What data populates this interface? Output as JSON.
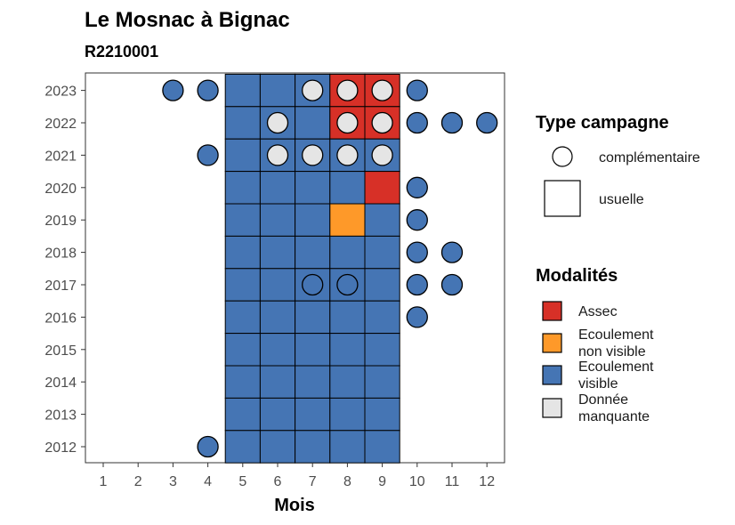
{
  "chart_data": {
    "type": "heatmap",
    "title": "Le Mosnac à Bignac",
    "subtitle": "R2210001",
    "xlabel": "Mois",
    "ylabel": "",
    "x_ticks": [
      "1",
      "2",
      "3",
      "4",
      "5",
      "6",
      "7",
      "8",
      "9",
      "10",
      "11",
      "12"
    ],
    "y_ticks": [
      "2012",
      "2013",
      "2014",
      "2015",
      "2016",
      "2017",
      "2018",
      "2019",
      "2020",
      "2021",
      "2022",
      "2023"
    ],
    "colors": {
      "Assec": "#d73027",
      "Ecoulement non visible": "#fe9929",
      "Ecoulement visible": "#4575b4",
      "Donnée manquante": "#e5e5e5"
    },
    "legend_type": {
      "title": "Type campagne",
      "items": [
        {
          "label": "complémentaire",
          "shape": "circle"
        },
        {
          "label": "usuelle",
          "shape": "square"
        }
      ]
    },
    "legend_modalites": {
      "title": "Modalités",
      "items": [
        {
          "key": "Assec",
          "lines": [
            "Assec"
          ]
        },
        {
          "key": "Ecoulement non visible",
          "lines": [
            "Ecoulement",
            "non visible"
          ]
        },
        {
          "key": "Ecoulement visible",
          "lines": [
            "Ecoulement",
            "visible"
          ]
        },
        {
          "key": "Donnée manquante",
          "lines": [
            "Donnée",
            "manquante"
          ]
        }
      ]
    },
    "usuelle": [
      {
        "year": 2023,
        "months": [
          5,
          6,
          7,
          8,
          9
        ],
        "values": [
          "Ecoulement visible",
          "Ecoulement visible",
          "Ecoulement visible",
          "Assec",
          "Assec"
        ]
      },
      {
        "year": 2022,
        "months": [
          5,
          6,
          7,
          8,
          9
        ],
        "values": [
          "Ecoulement visible",
          "Ecoulement visible",
          "Ecoulement visible",
          "Assec",
          "Assec"
        ]
      },
      {
        "year": 2021,
        "months": [
          5,
          6,
          7,
          8,
          9
        ],
        "values": [
          "Ecoulement visible",
          "Ecoulement visible",
          "Ecoulement visible",
          "Ecoulement visible",
          "Ecoulement visible"
        ]
      },
      {
        "year": 2020,
        "months": [
          5,
          6,
          7,
          8,
          9
        ],
        "values": [
          "Ecoulement visible",
          "Ecoulement visible",
          "Ecoulement visible",
          "Ecoulement visible",
          "Assec"
        ]
      },
      {
        "year": 2019,
        "months": [
          5,
          6,
          7,
          8,
          9
        ],
        "values": [
          "Ecoulement visible",
          "Ecoulement visible",
          "Ecoulement visible",
          "Ecoulement non visible",
          "Ecoulement visible"
        ]
      },
      {
        "year": 2018,
        "months": [
          5,
          6,
          7,
          8,
          9
        ],
        "values": [
          "Ecoulement visible",
          "Ecoulement visible",
          "Ecoulement visible",
          "Ecoulement visible",
          "Ecoulement visible"
        ]
      },
      {
        "year": 2017,
        "months": [
          5,
          6,
          7,
          8,
          9
        ],
        "values": [
          "Ecoulement visible",
          "Ecoulement visible",
          "Ecoulement visible",
          "Ecoulement visible",
          "Ecoulement visible"
        ]
      },
      {
        "year": 2016,
        "months": [
          5,
          6,
          7,
          8,
          9
        ],
        "values": [
          "Ecoulement visible",
          "Ecoulement visible",
          "Ecoulement visible",
          "Ecoulement visible",
          "Ecoulement visible"
        ]
      },
      {
        "year": 2015,
        "months": [
          5,
          6,
          7,
          8,
          9
        ],
        "values": [
          "Ecoulement visible",
          "Ecoulement visible",
          "Ecoulement visible",
          "Ecoulement visible",
          "Ecoulement visible"
        ]
      },
      {
        "year": 2014,
        "months": [
          5,
          6,
          7,
          8,
          9
        ],
        "values": [
          "Ecoulement visible",
          "Ecoulement visible",
          "Ecoulement visible",
          "Ecoulement visible",
          "Ecoulement visible"
        ]
      },
      {
        "year": 2013,
        "months": [
          5,
          6,
          7,
          8,
          9
        ],
        "values": [
          "Ecoulement visible",
          "Ecoulement visible",
          "Ecoulement visible",
          "Ecoulement visible",
          "Ecoulement visible"
        ]
      },
      {
        "year": 2012,
        "months": [
          5,
          6,
          7,
          8,
          9
        ],
        "values": [
          "Ecoulement visible",
          "Ecoulement visible",
          "Ecoulement visible",
          "Ecoulement visible",
          "Ecoulement visible"
        ]
      }
    ],
    "complementaire": [
      {
        "year": 2023,
        "month": 3,
        "value": "Ecoulement visible"
      },
      {
        "year": 2023,
        "month": 4,
        "value": "Ecoulement visible"
      },
      {
        "year": 2023,
        "month": 7,
        "value": "Donnée manquante"
      },
      {
        "year": 2023,
        "month": 8,
        "value": "Donnée manquante"
      },
      {
        "year": 2023,
        "month": 9,
        "value": "Donnée manquante"
      },
      {
        "year": 2023,
        "month": 10,
        "value": "Ecoulement visible"
      },
      {
        "year": 2022,
        "month": 6,
        "value": "Donnée manquante"
      },
      {
        "year": 2022,
        "month": 8,
        "value": "Donnée manquante"
      },
      {
        "year": 2022,
        "month": 9,
        "value": "Donnée manquante"
      },
      {
        "year": 2022,
        "month": 10,
        "value": "Ecoulement visible"
      },
      {
        "year": 2022,
        "month": 11,
        "value": "Ecoulement visible"
      },
      {
        "year": 2022,
        "month": 12,
        "value": "Ecoulement visible"
      },
      {
        "year": 2021,
        "month": 4,
        "value": "Ecoulement visible"
      },
      {
        "year": 2021,
        "month": 6,
        "value": "Donnée manquante"
      },
      {
        "year": 2021,
        "month": 7,
        "value": "Donnée manquante"
      },
      {
        "year": 2021,
        "month": 8,
        "value": "Donnée manquante"
      },
      {
        "year": 2021,
        "month": 9,
        "value": "Donnée manquante"
      },
      {
        "year": 2020,
        "month": 10,
        "value": "Ecoulement visible"
      },
      {
        "year": 2019,
        "month": 10,
        "value": "Ecoulement visible"
      },
      {
        "year": 2018,
        "month": 10,
        "value": "Ecoulement visible"
      },
      {
        "year": 2018,
        "month": 11,
        "value": "Ecoulement visible"
      },
      {
        "year": 2017,
        "month": 7,
        "value": "Ecoulement visible"
      },
      {
        "year": 2017,
        "month": 8,
        "value": "Ecoulement visible"
      },
      {
        "year": 2017,
        "month": 10,
        "value": "Ecoulement visible"
      },
      {
        "year": 2017,
        "month": 11,
        "value": "Ecoulement visible"
      },
      {
        "year": 2016,
        "month": 10,
        "value": "Ecoulement visible"
      },
      {
        "year": 2012,
        "month": 4,
        "value": "Ecoulement visible"
      }
    ]
  }
}
